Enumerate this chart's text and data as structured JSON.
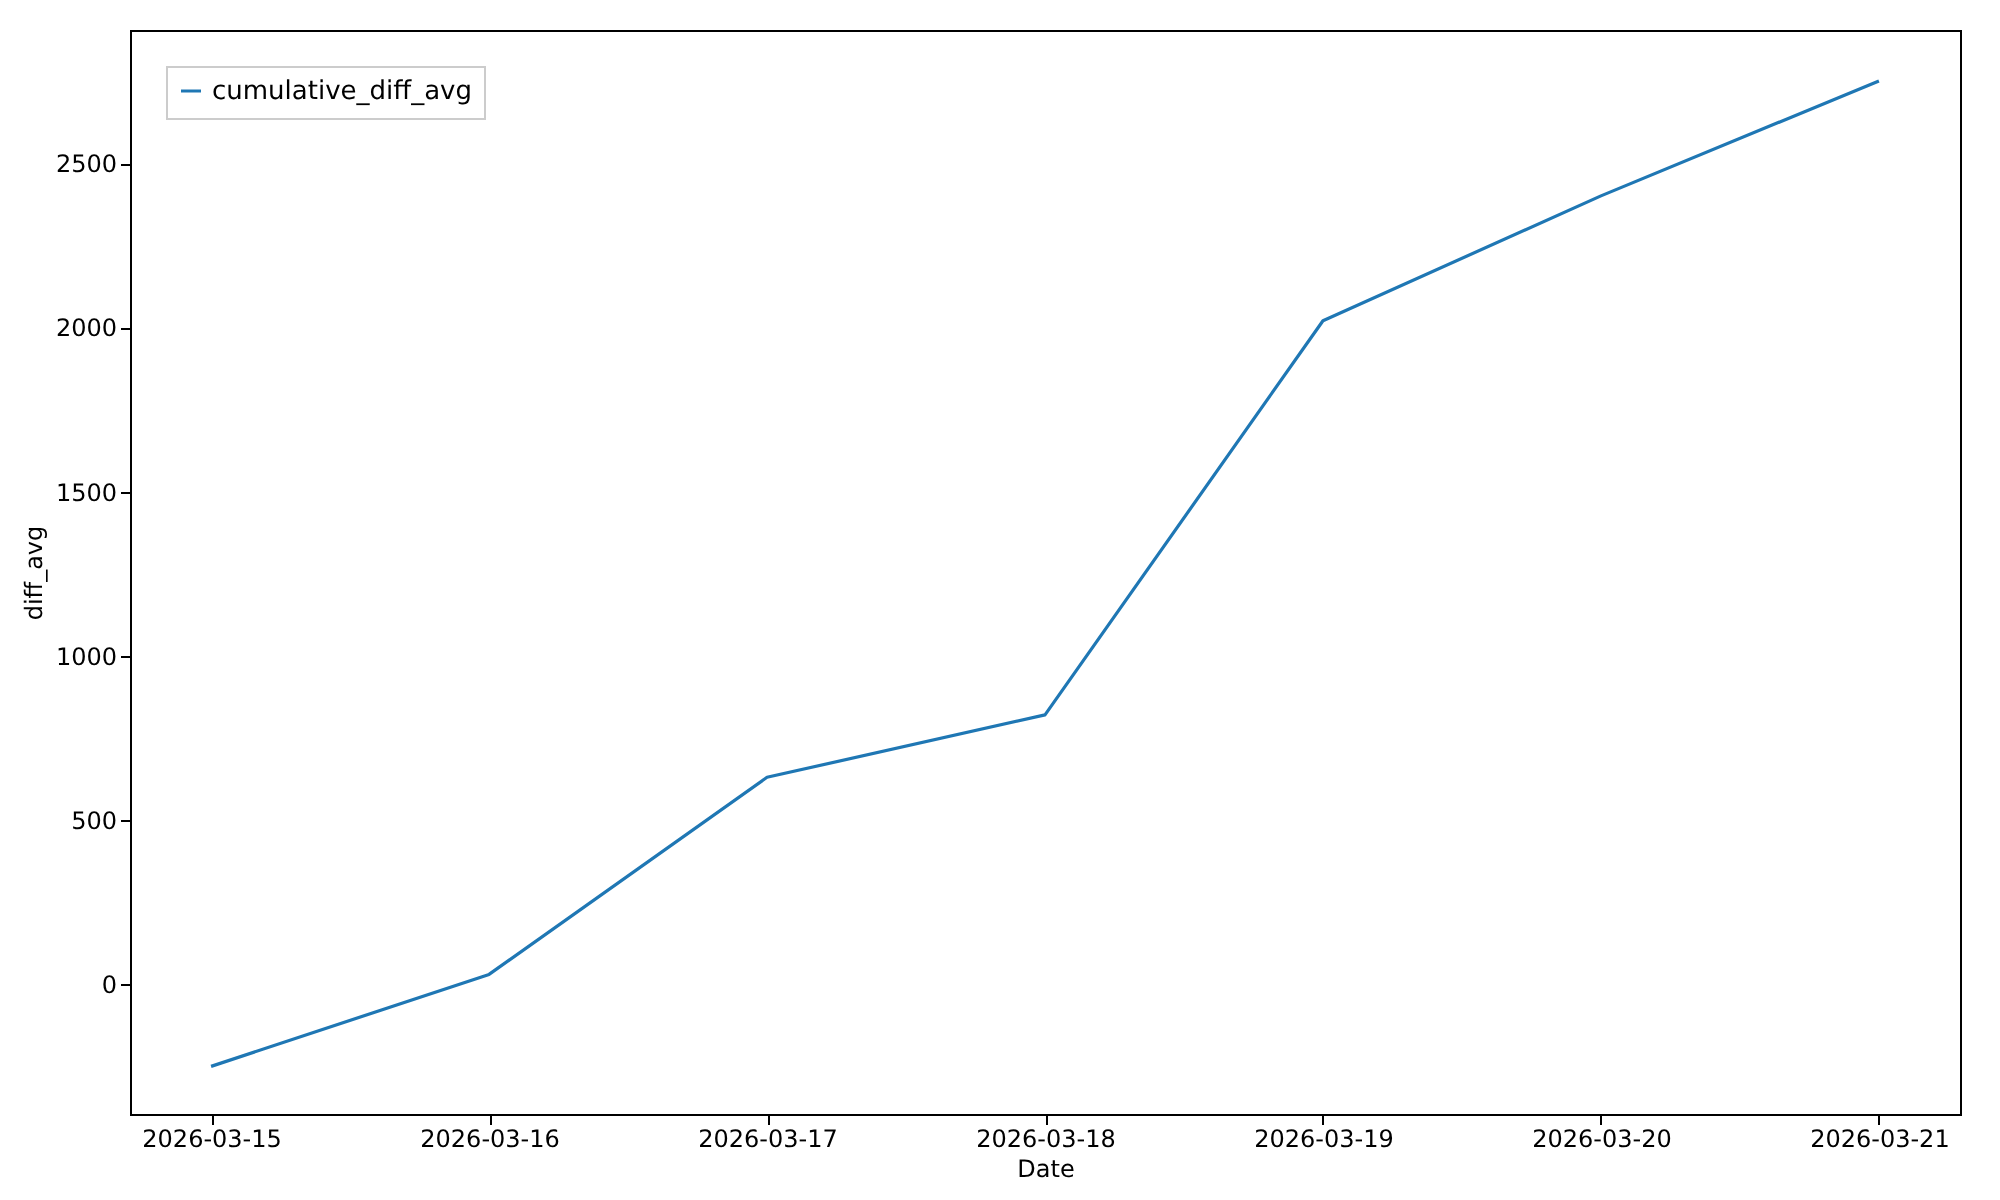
{
  "chart_data": {
    "type": "line",
    "xlabel": "Date",
    "ylabel": "diff_avg",
    "x": [
      "2026-03-15",
      "2026-03-16",
      "2026-03-17",
      "2026-03-18",
      "2026-03-19",
      "2026-03-20",
      "2026-03-21"
    ],
    "series": [
      {
        "name": "cumulative_diff_avg",
        "color": "#1f77b4",
        "values": [
          -250,
          30,
          630,
          820,
          2020,
          2400,
          2750
        ]
      }
    ],
    "xlim": [
      "2026-03-14T17:00",
      "2026-03-21T07:00"
    ],
    "xticks": [
      "2026-03-15",
      "2026-03-16",
      "2026-03-17",
      "2026-03-18",
      "2026-03-19",
      "2026-03-20",
      "2026-03-21"
    ],
    "ylim": [
      -395,
      2905
    ],
    "yticks": [
      0,
      500,
      1000,
      1500,
      2000,
      2500
    ],
    "grid": false,
    "legend": "top left",
    "marker": "none",
    "line_style": "solid"
  }
}
